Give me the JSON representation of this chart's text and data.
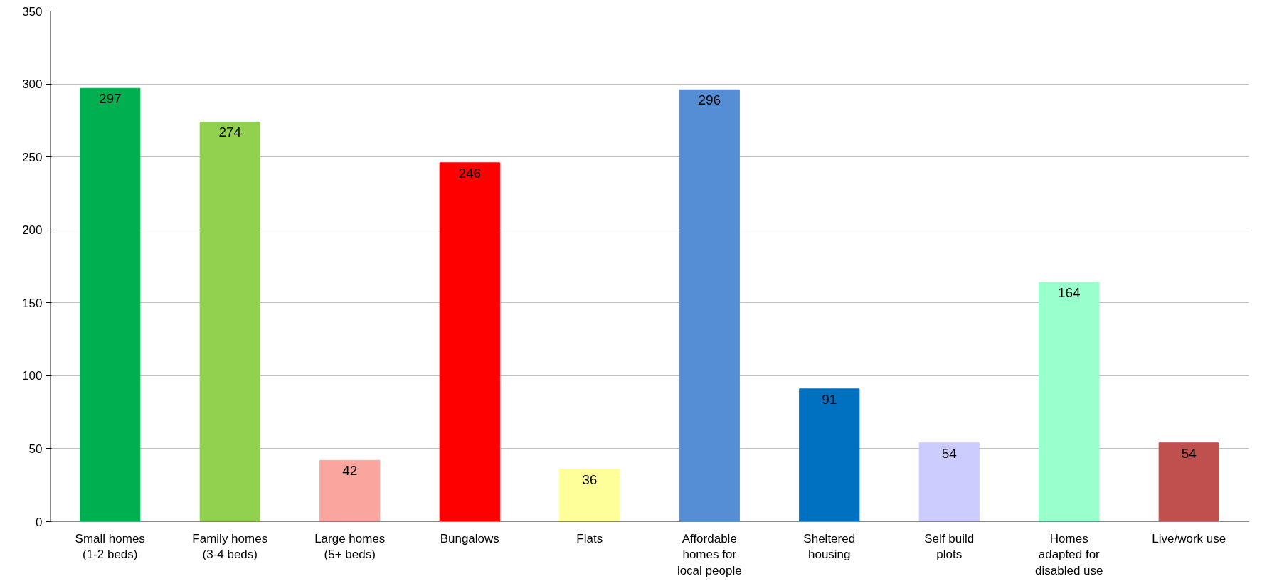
{
  "chart_data": {
    "type": "bar",
    "categories": [
      "Small homes\n(1-2 beds)",
      "Family homes\n(3-4 beds)",
      "Large homes\n(5+ beds)",
      "Bungalows",
      "Flats",
      "Affordable\nhomes for\nlocal people",
      "Sheltered\nhousing",
      "Self build\nplots",
      "Homes\nadapted for\ndisabled use",
      "Live/work use"
    ],
    "values": [
      297,
      274,
      42,
      246,
      36,
      296,
      91,
      54,
      164,
      54
    ],
    "colors": [
      "#00b050",
      "#92d050",
      "#faa59d",
      "#ff0000",
      "#ffff99",
      "#558ed5",
      "#0070c0",
      "#ccccff",
      "#99ffcc",
      "#c0504d"
    ],
    "ylim": [
      0,
      350
    ],
    "yticks": [
      0,
      50,
      100,
      150,
      200,
      250,
      300,
      350
    ],
    "grid": "y",
    "data_labels": true
  }
}
